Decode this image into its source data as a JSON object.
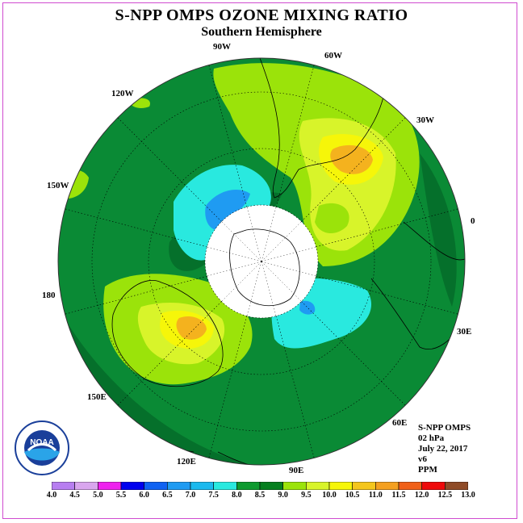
{
  "title": "S-NPP OMPS OZONE MIXING RATIO",
  "subtitle": "Southern Hemisphere",
  "lon_labels": {
    "w90": "90W",
    "w60": "60W",
    "w30": "30W",
    "w120": "120W",
    "w150": "150W",
    "e0": "0",
    "e180": "180",
    "e30": "30E",
    "e60": "60E",
    "e90": "90E",
    "e120": "120E",
    "e150": "150E"
  },
  "info": {
    "instrument": "S-NPP OMPS",
    "level": "02 hPa",
    "date": "July 22, 2017",
    "version": "v6",
    "units": "PPM"
  },
  "colorbar": {
    "labels": [
      "4.0",
      "4.5",
      "5.0",
      "5.5",
      "6.0",
      "6.5",
      "7.0",
      "7.5",
      "8.0",
      "8.5",
      "9.0",
      "9.5",
      "10.0",
      "10.5",
      "11.0",
      "11.5",
      "12.0",
      "12.5",
      "13.0"
    ],
    "colors": [
      "#b77ef0",
      "#d9a6ee",
      "#ee22ee",
      "#0000ee",
      "#0f62f2",
      "#1f9bf2",
      "#1bb9ee",
      "#29e9df",
      "#0e9a2f",
      "#067f1f",
      "#9be30a",
      "#d8f42a",
      "#f6f609",
      "#f4c61c",
      "#f4a020",
      "#f06018",
      "#ee0a0a",
      "#8f4b27"
    ]
  },
  "map_colors": {
    "base": "#0a8a35",
    "dark": "#05702b",
    "light_green": "#9be30a",
    "yellow_green": "#d8f42a",
    "yellow": "#f6f609",
    "orange": "#f4b21e",
    "cyan": "#29e9df",
    "blue": "#1f9bf2",
    "polar_night": "#ffffff"
  },
  "logo_text": "NOAA"
}
